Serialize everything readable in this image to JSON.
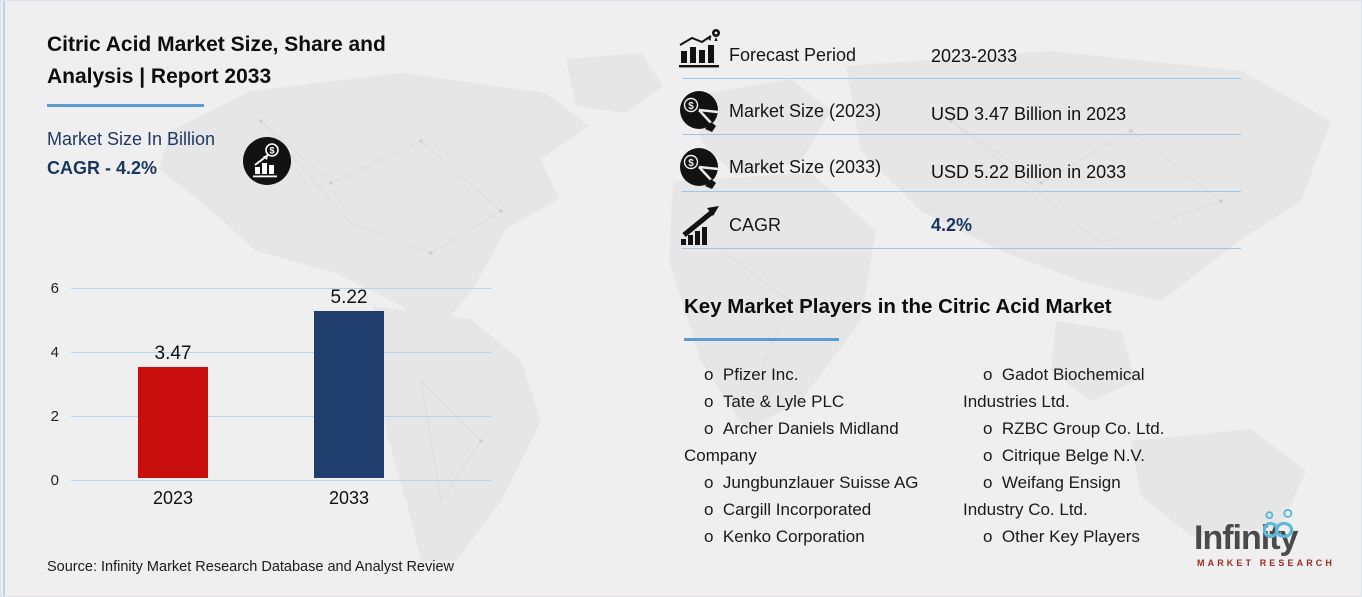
{
  "header": {
    "title": "Citric Acid Market Size, Share and Analysis | Report 2033",
    "subtitle": "Market Size In Billion",
    "cagr_line": "CAGR - 4.2%"
  },
  "chart_data": {
    "type": "bar",
    "categories": [
      "2023",
      "2033"
    ],
    "values": [
      3.47,
      5.22
    ],
    "bar_colors": [
      "#c80d0d",
      "#1f3e6e"
    ],
    "title": "Market Size In Billion",
    "xlabel": "",
    "ylabel": "",
    "ylim": [
      0,
      6
    ],
    "yticks": [
      0,
      2,
      4,
      6
    ],
    "grid": "horizontal light blue lines",
    "legend": "none",
    "data_labels": [
      "3.47",
      "5.22"
    ]
  },
  "source": "Source: Infinity Market Research Database and Analyst Review",
  "stats": {
    "rows": [
      {
        "icon": "forecast-chart-pin-icon",
        "label": "Forecast Period",
        "value": "2023-2033"
      },
      {
        "icon": "pie-dollar-icon",
        "label": "Market Size (2023)",
        "value": "USD 3.47 Billion in 2023"
      },
      {
        "icon": "pie-dollar-icon",
        "label": "Market Size (2033)",
        "value": "USD 5.22 Billion in 2033"
      },
      {
        "icon": "growth-arrow-icon",
        "label": "CAGR",
        "value": "4.2%"
      }
    ]
  },
  "players": {
    "heading": "Key Market Players in the Citric Acid Market",
    "left": [
      "Pfizer Inc.",
      "Tate & Lyle PLC",
      "Archer Daniels Midland Company",
      "Jungbunzlauer Suisse AG",
      "Cargill Incorporated",
      "Kenko Corporation"
    ],
    "right": [
      "Gadot Biochemical Industries Ltd.",
      "RZBC Group Co. Ltd.",
      "Citrique Belge N.V.",
      "Weifang Ensign Industry Co. Ltd.",
      "Other Key Players"
    ]
  },
  "logo": {
    "name": "Infinity",
    "tagline": "MARKET RESEARCH"
  },
  "icons": {
    "analysis-circle-icon": "black circle with dollar coin, rising arrow and bar chart",
    "forecast-chart-pin-icon": "bar chart with trend arrow ending in map pin",
    "pie-dollar-icon": "black pie chart with dollar sign",
    "growth-arrow-icon": "ascending bars with bold upward arrow"
  },
  "colors": {
    "background": "#efefef",
    "accent_underline": "#5b9bd5",
    "navy_text": "#17375e",
    "bar_2023": "#c80d0d",
    "bar_2033": "#1f3e6e",
    "gridline": "#b9d3ea",
    "divider": "#a6c5e2",
    "logo_blue": "#5fb8d9",
    "logo_gray": "#4a4a4a"
  }
}
